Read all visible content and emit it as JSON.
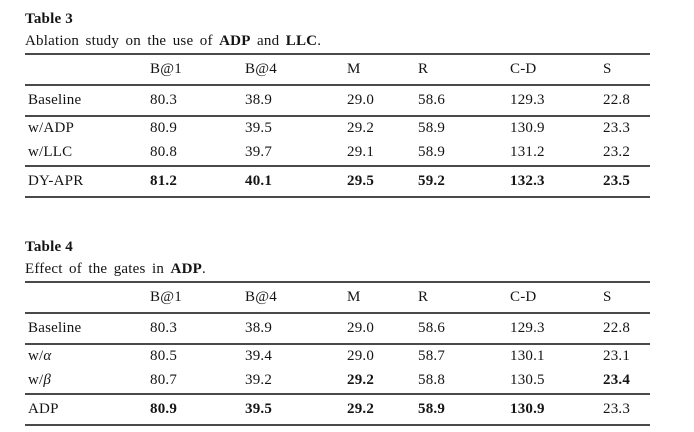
{
  "page": {
    "background": "#ffffff",
    "text_color": "#141414",
    "rule_color": "#4a4a4a"
  },
  "tables": [
    {
      "title": "Table 3",
      "caption_parts": [
        {
          "t": "Ablation study on the use of ",
          "b": false
        },
        {
          "t": "ADP",
          "b": true
        },
        {
          "t": " and ",
          "b": false
        },
        {
          "t": "LLC",
          "b": true
        },
        {
          "t": ".",
          "b": false
        }
      ],
      "columns": [
        "",
        "B@1",
        "B@4",
        "M",
        "R",
        "C-D",
        "S"
      ],
      "rows": [
        {
          "label": "Baseline",
          "values": [
            "80.3",
            "38.9",
            "29.0",
            "58.6",
            "129.3",
            "22.8"
          ],
          "bold": [
            false,
            false,
            false,
            false,
            false,
            false
          ],
          "rule_after": true,
          "compact": false
        },
        {
          "label": "w/ADP",
          "values": [
            "80.9",
            "39.5",
            "29.2",
            "58.9",
            "130.9",
            "23.3"
          ],
          "bold": [
            false,
            false,
            false,
            false,
            false,
            false
          ],
          "rule_after": false,
          "compact": true
        },
        {
          "label": "w/LLC",
          "values": [
            "80.8",
            "39.7",
            "29.1",
            "58.9",
            "131.2",
            "23.2"
          ],
          "bold": [
            false,
            false,
            false,
            false,
            false,
            false
          ],
          "rule_after": true,
          "compact": true
        },
        {
          "label": "DY-APR",
          "values": [
            "81.2",
            "40.1",
            "29.5",
            "59.2",
            "132.3",
            "23.5"
          ],
          "bold": [
            true,
            true,
            true,
            true,
            true,
            true
          ],
          "rule_after": false,
          "compact": false
        }
      ]
    },
    {
      "title": "Table 4",
      "caption_parts": [
        {
          "t": "Effect of the gates in ",
          "b": false
        },
        {
          "t": "ADP",
          "b": true
        },
        {
          "t": ".",
          "b": false
        }
      ],
      "columns": [
        "",
        "B@1",
        "B@4",
        "M",
        "R",
        "C-D",
        "S"
      ],
      "rows": [
        {
          "label": "Baseline",
          "values": [
            "80.3",
            "38.9",
            "29.0",
            "58.6",
            "129.3",
            "22.8"
          ],
          "bold": [
            false,
            false,
            false,
            false,
            false,
            false
          ],
          "rule_after": true,
          "compact": false
        },
        {
          "label": "w/α",
          "values": [
            "80.5",
            "39.4",
            "29.0",
            "58.7",
            "130.1",
            "23.1"
          ],
          "bold": [
            false,
            false,
            false,
            false,
            false,
            false
          ],
          "rule_after": false,
          "compact": true
        },
        {
          "label": "w/β",
          "values": [
            "80.7",
            "39.2",
            "29.2",
            "58.8",
            "130.5",
            "23.4"
          ],
          "bold": [
            false,
            false,
            true,
            false,
            false,
            true
          ],
          "rule_after": true,
          "compact": true
        },
        {
          "label": "ADP",
          "values": [
            "80.9",
            "39.5",
            "29.2",
            "58.9",
            "130.9",
            "23.3"
          ],
          "bold": [
            true,
            true,
            true,
            true,
            true,
            false
          ],
          "rule_after": false,
          "compact": false
        }
      ]
    }
  ]
}
